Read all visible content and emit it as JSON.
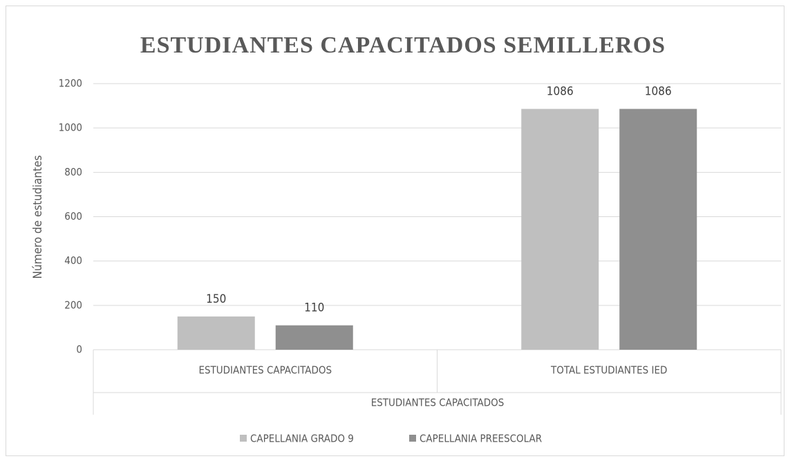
{
  "chart_data": {
    "type": "bar",
    "title": "ESTUDIANTES CAPACITADOS SEMILLEROS",
    "y_label": "Número de estudiantes",
    "x_group_label": "ESTUDIANTES CAPACITADOS",
    "categories": [
      "ESTUDIANTES CAPACITADOS",
      "TOTAL ESTUDIANTES IED"
    ],
    "series": [
      {
        "name": "CAPELLANIA GRADO 9",
        "color": "#bfbfbf",
        "values": [
          150,
          1086
        ]
      },
      {
        "name": "CAPELLANIA PREESCOLAR",
        "color": "#8f8f8f",
        "values": [
          110,
          1086
        ]
      }
    ],
    "ylim": [
      0,
      1200
    ],
    "yticks": [
      0,
      200,
      400,
      600,
      800,
      1000,
      1200
    ],
    "grid": true,
    "legend": "bottom"
  }
}
